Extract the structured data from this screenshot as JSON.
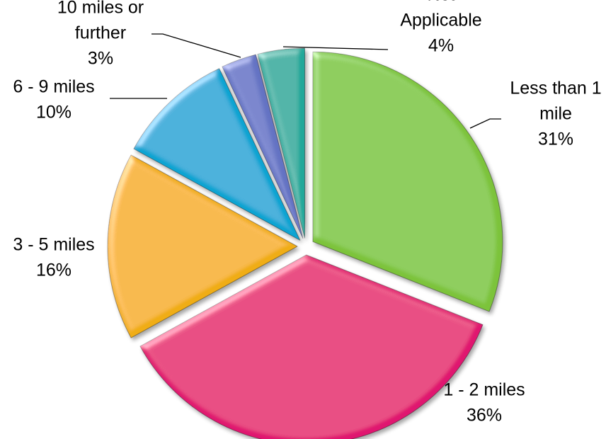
{
  "chart_data": {
    "type": "pie",
    "title": "",
    "unit": "%",
    "slices": [
      {
        "label": "Less than 1 mile",
        "label_lines": [
          "Less than 1",
          "mile"
        ],
        "value": 31,
        "value_label": "31%",
        "color": "#7cc33a"
      },
      {
        "label": "1 - 2 miles",
        "label_lines": [
          "1 - 2 miles"
        ],
        "value": 36,
        "value_label": "36%",
        "color": "#e0166f"
      },
      {
        "label": "3 - 5 miles",
        "label_lines": [
          "3 - 5 miles"
        ],
        "value": 16,
        "value_label": "16%",
        "color": "#f0ad12"
      },
      {
        "label": "6 - 9 miles",
        "label_lines": [
          "6 - 9 miles"
        ],
        "value": 10,
        "value_label": "10%",
        "color": "#0aa4d2"
      },
      {
        "label": "10 miles or further",
        "label_lines": [
          "10 miles or",
          "further"
        ],
        "value": 3,
        "value_label": "3%",
        "color": "#6473c3"
      },
      {
        "label": "Not Applicable",
        "label_lines": [
          "Not",
          "Applicable"
        ],
        "value": 4,
        "value_label": "4%",
        "color": "#21a89a"
      }
    ],
    "legend": "none",
    "exploded": true
  }
}
